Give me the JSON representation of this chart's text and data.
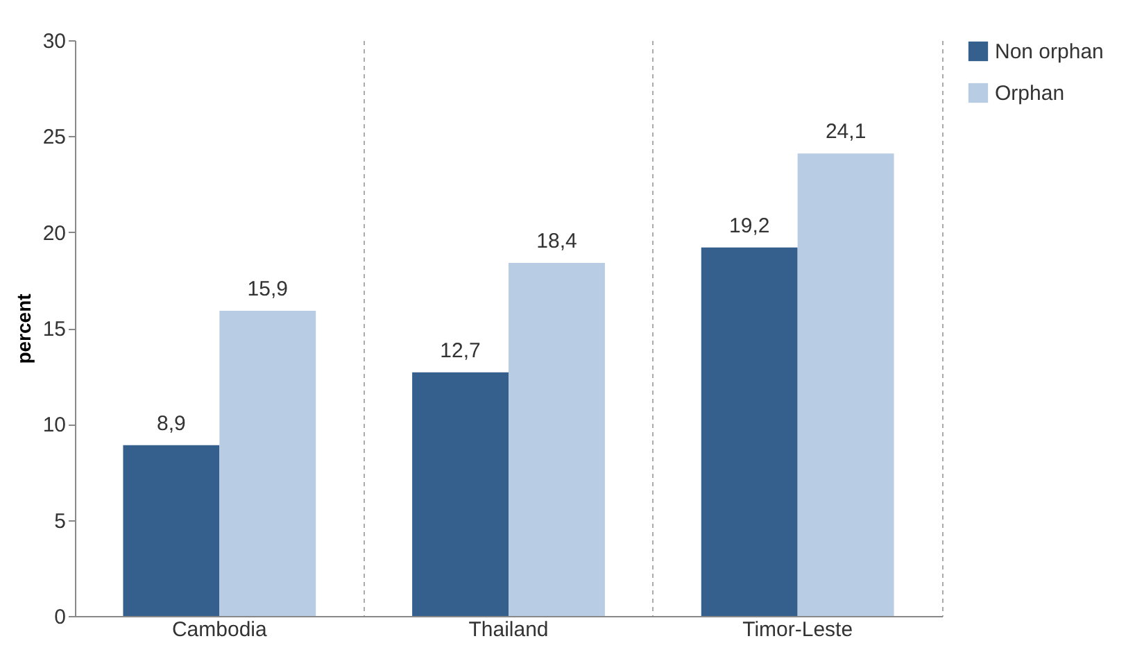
{
  "chart_data": {
    "type": "bar",
    "categories": [
      "Cambodia",
      "Thailand",
      "Timor-Leste"
    ],
    "ylabel": "percent",
    "series": [
      {
        "name": "Non orphan",
        "color": "#355f8d",
        "values": [
          8.9,
          12.7,
          19.2
        ],
        "value_labels": [
          "8,9",
          "12,7",
          "19,2"
        ]
      },
      {
        "name": "Orphan",
        "color": "#b8cce4",
        "values": [
          15.9,
          18.4,
          24.1
        ],
        "value_labels": [
          "15,9",
          "18,4",
          "24,1"
        ]
      }
    ],
    "ylim": [
      0,
      30
    ],
    "yticks": [
      0,
      5,
      10,
      15,
      20,
      25,
      30
    ],
    "grid": "x",
    "legend": "top right"
  }
}
